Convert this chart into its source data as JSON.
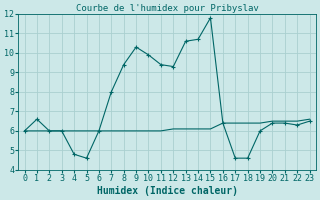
{
  "title": "Courbe de l'humidex pour Pribyslav",
  "xlabel": "Humidex (Indice chaleur)",
  "background_color": "#cce8e8",
  "grid_color": "#aad0d0",
  "line_color": "#006666",
  "xlim": [
    -0.5,
    23.5
  ],
  "ylim": [
    4,
    12
  ],
  "xticks": [
    0,
    1,
    2,
    3,
    4,
    5,
    6,
    7,
    8,
    9,
    10,
    11,
    12,
    13,
    14,
    15,
    16,
    17,
    18,
    19,
    20,
    21,
    22,
    23
  ],
  "yticks": [
    4,
    5,
    6,
    7,
    8,
    9,
    10,
    11,
    12
  ],
  "series1_x": [
    0,
    1,
    2,
    3,
    4,
    5,
    6,
    7,
    8,
    9,
    10,
    11,
    12,
    13,
    14,
    15,
    16,
    17,
    18,
    19,
    20,
    21,
    22,
    23
  ],
  "series1_y": [
    6.0,
    6.6,
    6.0,
    6.0,
    4.8,
    4.6,
    6.0,
    8.0,
    9.4,
    10.3,
    9.9,
    9.4,
    9.3,
    10.6,
    10.7,
    11.8,
    6.4,
    4.6,
    4.6,
    6.0,
    6.4,
    6.4,
    6.3,
    6.5
  ],
  "series2_x": [
    0,
    1,
    2,
    3,
    4,
    5,
    6,
    7,
    8,
    9,
    10,
    11,
    12,
    13,
    14,
    15,
    16,
    17,
    18,
    19,
    20,
    21,
    22,
    23
  ],
  "series2_y": [
    6.0,
    6.0,
    6.0,
    6.0,
    6.0,
    6.0,
    6.0,
    6.0,
    6.0,
    6.0,
    6.0,
    6.0,
    6.1,
    6.1,
    6.1,
    6.1,
    6.4,
    6.4,
    6.4,
    6.4,
    6.5,
    6.5,
    6.5,
    6.6
  ],
  "title_fontsize": 6.5,
  "xlabel_fontsize": 7,
  "tick_fontsize": 6
}
